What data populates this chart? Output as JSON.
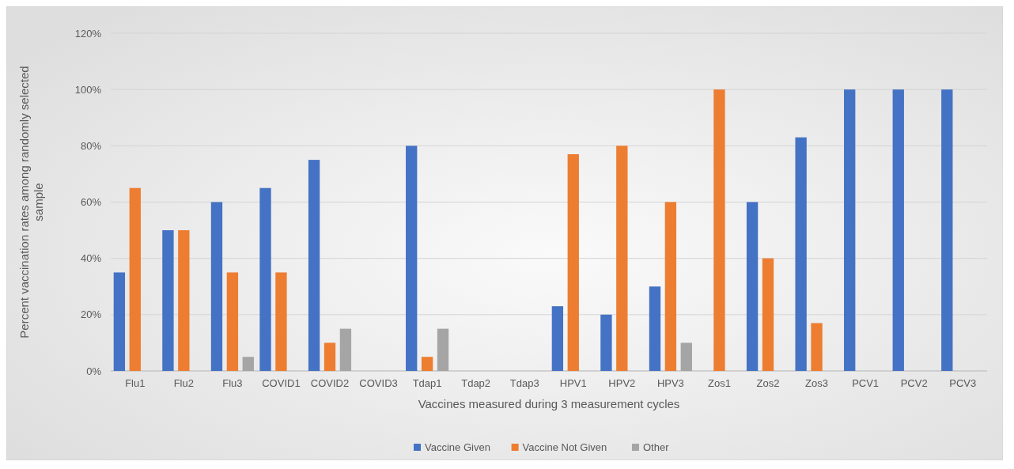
{
  "chart_data": {
    "type": "bar",
    "xlabel": "Vaccines measured during 3 measurement cycles",
    "ylabel": "Percent vaccination rates among randomly selected sample",
    "categories": [
      "Flu1",
      "Flu2",
      "Flu3",
      "COVID1",
      "COVID2",
      "COVID3",
      "Tdap1",
      "Tdap2",
      "Tdap3",
      "HPV1",
      "HPV2",
      "HPV3",
      "Zos1",
      "Zos2",
      "Zos3",
      "PCV1",
      "PCV2",
      "PCV3"
    ],
    "series": [
      {
        "name": "Vaccine Given",
        "color": "#4472c4",
        "values": [
          35,
          50,
          60,
          65,
          75,
          null,
          80,
          null,
          null,
          23,
          20,
          30,
          null,
          60,
          83,
          100,
          100,
          100
        ]
      },
      {
        "name": "Vaccine Not Given",
        "color": "#ed7d31",
        "values": [
          65,
          50,
          35,
          35,
          10,
          null,
          5,
          null,
          null,
          77,
          80,
          60,
          100,
          40,
          17,
          null,
          null,
          null
        ]
      },
      {
        "name": "Other",
        "color": "#a5a5a5",
        "values": [
          null,
          null,
          5,
          null,
          15,
          null,
          15,
          null,
          null,
          null,
          null,
          10,
          null,
          null,
          null,
          null,
          null,
          null
        ]
      }
    ],
    "ylim": [
      0,
      120
    ],
    "yticks": [
      {
        "value": 0,
        "label": "0%"
      },
      {
        "value": 20,
        "label": "20%"
      },
      {
        "value": 40,
        "label": "40%"
      },
      {
        "value": 60,
        "label": "60%"
      },
      {
        "value": 80,
        "label": "80%"
      },
      {
        "value": 100,
        "label": "100%"
      },
      {
        "value": 120,
        "label": "120%"
      }
    ],
    "grid": "y",
    "legend": "bottom"
  }
}
